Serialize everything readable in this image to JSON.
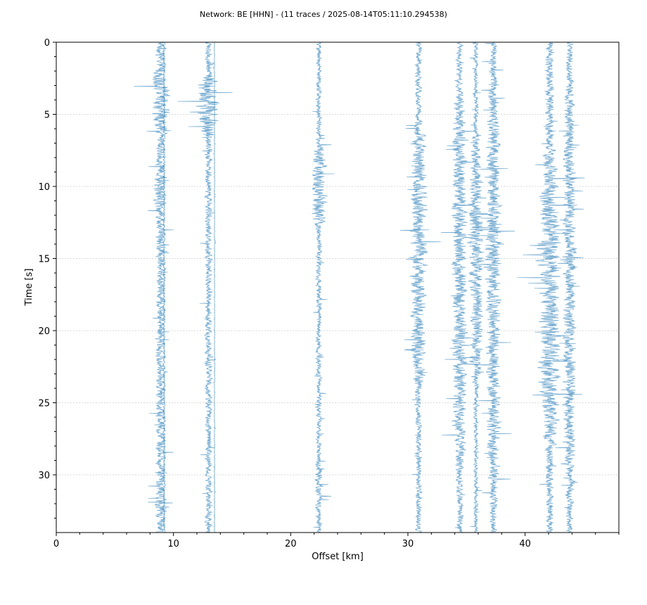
{
  "chart_data": {
    "type": "line",
    "title": "Network: BE [HHN] - (11 traces / 2025-08-14T05:11:10.294538)",
    "xlabel": "Offset [km]",
    "ylabel": "Time [s]",
    "xlim": [
      0,
      48
    ],
    "ylim": [
      34,
      0
    ],
    "x_ticks": [
      0,
      10,
      20,
      30,
      40
    ],
    "y_ticks": [
      0,
      5,
      10,
      15,
      20,
      25,
      30
    ],
    "y_grid": true,
    "x_grid": false,
    "series_color": "#2c7fb8",
    "grid_color": "#d9d9d9",
    "traces": [
      {
        "offset_km": 8.9,
        "amplitude": 1.0,
        "start_s": 0,
        "end_s": 34,
        "bursts": [
          [
            1.6,
            6.5,
            1.9
          ],
          [
            9.0,
            11.5,
            1.6
          ],
          [
            31.5,
            33.0,
            1.6
          ]
        ]
      },
      {
        "offset_km": 9.2,
        "amplitude": 0.25,
        "start_s": 0,
        "end_s": 34,
        "bursts": []
      },
      {
        "offset_km": 13.0,
        "amplitude": 0.75,
        "start_s": 0,
        "end_s": 34,
        "bursts": [
          [
            2.3,
            6.5,
            3.2
          ]
        ]
      },
      {
        "offset_km": 13.5,
        "amplitude": 0.1,
        "start_s": 0,
        "end_s": 34,
        "bursts": []
      },
      {
        "offset_km": 22.4,
        "amplitude": 0.6,
        "start_s": 0,
        "end_s": 34,
        "bursts": [
          [
            7.0,
            13.0,
            2.6
          ],
          [
            28.5,
            32.5,
            1.4
          ]
        ]
      },
      {
        "offset_km": 30.9,
        "amplitude": 0.7,
        "start_s": 0,
        "end_s": 34,
        "bursts": [
          [
            5.5,
            24.0,
            2.6
          ]
        ]
      },
      {
        "offset_km": 34.4,
        "amplitude": 0.7,
        "start_s": 0,
        "end_s": 34,
        "bursts": [
          [
            3.5,
            30.0,
            2.4
          ],
          [
            11.5,
            16.5,
            2.2
          ]
        ]
      },
      {
        "offset_km": 35.8,
        "amplitude": 0.5,
        "start_s": 0,
        "end_s": 34,
        "bursts": [
          [
            6.5,
            24.0,
            3.0
          ],
          [
            11.5,
            16.0,
            3.6
          ]
        ]
      },
      {
        "offset_km": 37.3,
        "amplitude": 0.8,
        "start_s": 0,
        "end_s": 34,
        "bursts": [
          [
            1.0,
            33.0,
            1.9
          ],
          [
            11.5,
            16.5,
            2.5
          ]
        ]
      },
      {
        "offset_km": 42.1,
        "amplitude": 0.9,
        "start_s": 0,
        "end_s": 34,
        "bursts": [
          [
            7.4,
            28.0,
            2.6
          ],
          [
            13.5,
            15.5,
            3.0
          ],
          [
            20.0,
            25.0,
            2.2
          ]
        ]
      },
      {
        "offset_km": 43.8,
        "amplitude": 0.7,
        "start_s": 0,
        "end_s": 34,
        "bursts": [
          [
            1.0,
            33.0,
            1.9
          ],
          [
            7.0,
            9.5,
            2.0
          ],
          [
            14.0,
            15.5,
            2.3
          ]
        ]
      }
    ]
  }
}
